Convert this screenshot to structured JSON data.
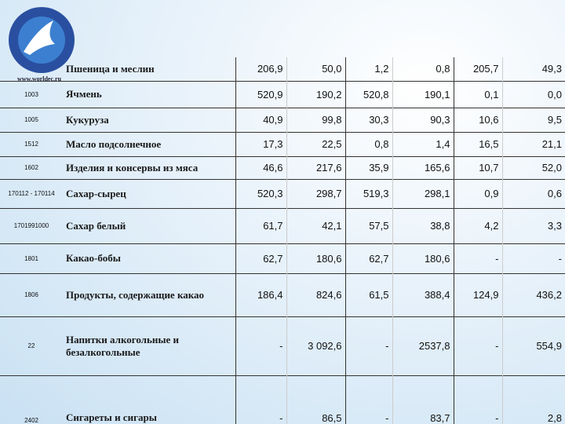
{
  "logo": {
    "url": "www.worldec.ru"
  },
  "table": {
    "rows": [
      {
        "name": "Пшеница и меслин",
        "values": [
          "206,9",
          "50,0",
          "1,2",
          "0,8",
          "205,7",
          "49,3"
        ]
      },
      {
        "code": "1003",
        "name": "Ячмень",
        "values": [
          "520,9",
          "190,2",
          "520,8",
          "190,1",
          "0,1",
          "0,0"
        ]
      },
      {
        "code": "1005",
        "name": "Кукуруза",
        "values": [
          "40,9",
          "99,8",
          "30,3",
          "90,3",
          "10,6",
          "9,5"
        ]
      },
      {
        "code": "1512",
        "name": "Масло подсолнечное",
        "values": [
          "17,3",
          "22,5",
          "0,8",
          "1,4",
          "16,5",
          "21,1"
        ]
      },
      {
        "code": "1602",
        "name": "Изделия и консервы из мяса",
        "values": [
          "46,6",
          "217,6",
          "35,9",
          "165,6",
          "10,7",
          "52,0"
        ]
      },
      {
        "code": "170112 - 170114",
        "name": "Сахар-сырец",
        "values": [
          "520,3",
          "298,7",
          "519,3",
          "298,1",
          "0,9",
          "0,6"
        ]
      },
      {
        "code": "1701991000",
        "name": "Сахар белый",
        "values": [
          "61,7",
          "42,1",
          "57,5",
          "38,8",
          "4,2",
          "3,3"
        ]
      },
      {
        "code": "1801",
        "name": "Какао-бобы",
        "values": [
          "62,7",
          "180,6",
          "62,7",
          "180,6",
          "-",
          "-"
        ]
      },
      {
        "code": "1806",
        "name": "Продукты, содержащие какао",
        "values": [
          "186,4",
          "824,6",
          "61,5",
          "388,4",
          "124,9",
          "436,2"
        ]
      },
      {
        "code": "22",
        "name": "Напитки алкогольные и безалкогольные",
        "values": [
          "-",
          "3 092,6",
          "-",
          "2537,8",
          "-",
          "554,9"
        ]
      },
      {
        "code": "2402",
        "name": "Сигареты и сигары",
        "values": [
          "-",
          "86,5",
          "-",
          "83,7",
          "-",
          "2,8"
        ]
      }
    ]
  }
}
